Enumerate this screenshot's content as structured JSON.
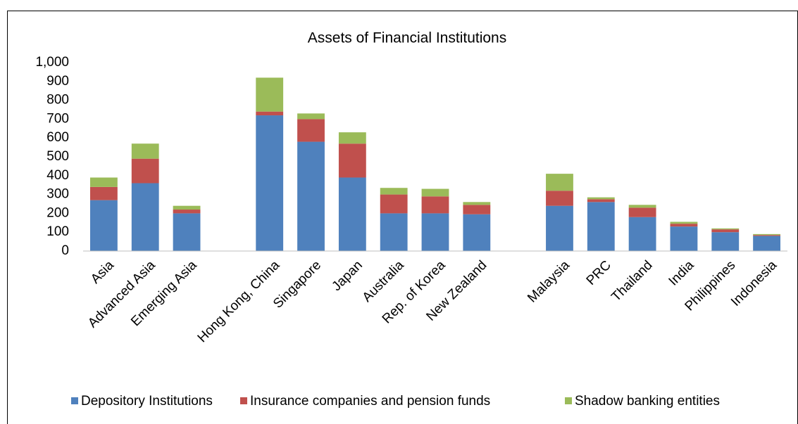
{
  "chart_data": {
    "type": "stacked_bar",
    "title": "Assets of Financial Institutions",
    "categories": [
      "Asia",
      "Advanced Asia",
      "Emerging Asia",
      null,
      "Hong Kong, China",
      "Singapore",
      "Japan",
      "Australia",
      "Rep. of Korea",
      "New Zealand",
      null,
      "Malaysia",
      "PRC",
      "Thailand",
      "India",
      "Philippines",
      "Indonesia"
    ],
    "series": [
      {
        "name": "Depository Institutions",
        "color": "#4f81bd",
        "values": [
          270,
          360,
          200,
          null,
          720,
          580,
          390,
          200,
          200,
          195,
          null,
          240,
          260,
          180,
          130,
          100,
          80
        ]
      },
      {
        "name": "Insurance companies and pension funds",
        "color": "#c0504d",
        "values": [
          70,
          130,
          20,
          null,
          20,
          120,
          180,
          100,
          90,
          50,
          null,
          80,
          15,
          50,
          15,
          15,
          5
        ]
      },
      {
        "name": "Shadow banking entities",
        "color": "#9bbb59",
        "values": [
          50,
          80,
          20,
          null,
          180,
          30,
          60,
          35,
          40,
          15,
          null,
          90,
          10,
          15,
          10,
          5,
          5
        ]
      }
    ],
    "ylim": [
      0,
      1000
    ],
    "yticks": [
      0,
      100,
      200,
      300,
      400,
      500,
      600,
      700,
      800,
      900,
      {
        "value": 1000,
        "label": "1,000"
      }
    ],
    "legend": "bottom"
  }
}
